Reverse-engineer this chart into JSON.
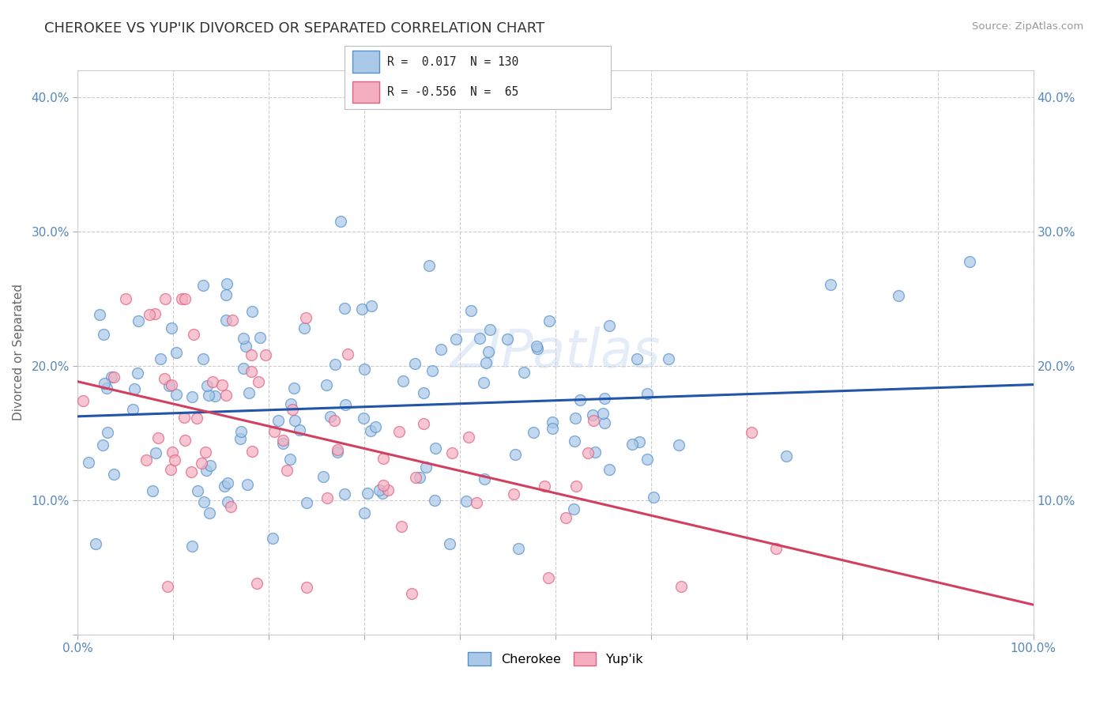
{
  "title": "CHEROKEE VS YUP'IK DIVORCED OR SEPARATED CORRELATION CHART",
  "source": "Source: ZipAtlas.com",
  "ylabel": "Divorced or Separated",
  "xlim": [
    0.0,
    1.0
  ],
  "ylim": [
    0.0,
    0.42
  ],
  "xticks": [
    0.0,
    0.1,
    0.2,
    0.3,
    0.4,
    0.5,
    0.6,
    0.7,
    0.8,
    0.9,
    1.0
  ],
  "xticklabels": [
    "0.0%",
    "",
    "",
    "",
    "",
    "",
    "",
    "",
    "",
    "",
    "100.0%"
  ],
  "yticks": [
    0.0,
    0.1,
    0.2,
    0.3,
    0.4
  ],
  "yticklabels": [
    "",
    "10.0%",
    "20.0%",
    "30.0%",
    "40.0%"
  ],
  "cherokee_R": 0.017,
  "cherokee_N": 130,
  "yupik_R": -0.556,
  "yupik_N": 65,
  "cherokee_color": "#aac8e8",
  "yupik_color": "#f5aec0",
  "cherokee_edge_color": "#5590cc",
  "yupik_edge_color": "#e06080",
  "cherokee_line_color": "#2255aa",
  "yupik_line_color": "#d04060",
  "watermark": "ZIPatlas",
  "background_color": "#ffffff",
  "grid_color": "#cccccc",
  "title_color": "#333333",
  "tick_color": "#5588bb",
  "legend_cherokee_label": "Cherokee",
  "legend_yupik_label": "Yup'ik",
  "legend_text_r1": "R =  0.017  N = 130",
  "legend_text_r2": "R = -0.556  N =  65"
}
